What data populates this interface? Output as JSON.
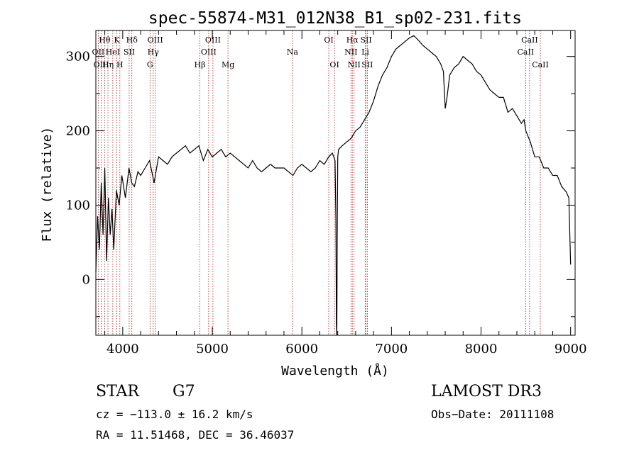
{
  "chart_data": {
    "type": "line",
    "title": "spec-55874-M31_012N38_B1_sp02-231.fits",
    "xlabel": "Wavelength (Å)",
    "ylabel": "Flux (relative)",
    "xlim": [
      3700,
      9050
    ],
    "ylim": [
      -75,
      335
    ],
    "xticks": [
      4000,
      5000,
      6000,
      7000,
      8000,
      9000
    ],
    "yticks": [
      0,
      100,
      200,
      300
    ],
    "colors": {
      "line": "#000000",
      "marker": "#b22222",
      "axes": "#000000"
    },
    "series": [
      {
        "name": "flux",
        "x": [
          3700,
          3720,
          3740,
          3760,
          3780,
          3800,
          3820,
          3840,
          3860,
          3880,
          3900,
          3930,
          3960,
          3990,
          4030,
          4070,
          4100,
          4130,
          4170,
          4200,
          4250,
          4300,
          4350,
          4400,
          4450,
          4500,
          4550,
          4600,
          4650,
          4700,
          4750,
          4800,
          4850,
          4900,
          4950,
          5000,
          5050,
          5100,
          5150,
          5200,
          5250,
          5300,
          5350,
          5400,
          5450,
          5500,
          5550,
          5600,
          5650,
          5700,
          5750,
          5800,
          5850,
          5900,
          5950,
          6000,
          6050,
          6100,
          6150,
          6200,
          6250,
          6300,
          6340,
          6370,
          6380,
          6385,
          6390,
          6395,
          6400,
          6410,
          6450,
          6500,
          6550,
          6600,
          6650,
          6700,
          6750,
          6800,
          6850,
          6900,
          6950,
          7000,
          7050,
          7100,
          7150,
          7200,
          7250,
          7300,
          7350,
          7400,
          7450,
          7500,
          7550,
          7580,
          7600,
          7620,
          7650,
          7700,
          7750,
          7800,
          7850,
          7900,
          7950,
          8000,
          8050,
          8100,
          8150,
          8200,
          8250,
          8300,
          8350,
          8400,
          8450,
          8480,
          8500,
          8550,
          8600,
          8650,
          8700,
          8750,
          8800,
          8850,
          8900,
          8950,
          8980,
          9000
        ],
        "y": [
          10,
          85,
          40,
          130,
          60,
          150,
          25,
          110,
          60,
          95,
          40,
          120,
          100,
          140,
          110,
          150,
          130,
          125,
          145,
          140,
          150,
          160,
          130,
          165,
          160,
          155,
          165,
          170,
          175,
          180,
          170,
          175,
          180,
          160,
          175,
          165,
          170,
          175,
          165,
          170,
          165,
          160,
          155,
          150,
          160,
          150,
          145,
          150,
          155,
          150,
          150,
          150,
          145,
          140,
          150,
          155,
          150,
          145,
          150,
          160,
          155,
          165,
          170,
          160,
          80,
          -60,
          -75,
          60,
          165,
          175,
          180,
          185,
          190,
          200,
          205,
          215,
          225,
          240,
          260,
          275,
          285,
          300,
          310,
          315,
          320,
          325,
          328,
          322,
          315,
          310,
          305,
          300,
          290,
          280,
          230,
          245,
          275,
          285,
          290,
          300,
          295,
          290,
          280,
          275,
          265,
          255,
          250,
          245,
          245,
          225,
          230,
          220,
          210,
          215,
          200,
          185,
          165,
          165,
          150,
          150,
          140,
          140,
          125,
          118,
          110,
          20
        ]
      }
    ],
    "line_markers": [
      {
        "label": "Hθ",
        "x": 3798,
        "row": 1
      },
      {
        "label": "OII",
        "x": 3727,
        "row": 2
      },
      {
        "label": "OIII",
        "x": 3760,
        "row": 3
      },
      {
        "label": "K",
        "x": 3934,
        "row": 1
      },
      {
        "label": "HeI",
        "x": 3889,
        "row": 2
      },
      {
        "label": "Hη",
        "x": 3835,
        "row": 3
      },
      {
        "label": "Hδ",
        "x": 4102,
        "row": 1
      },
      {
        "label": "SII",
        "x": 4072,
        "row": 2
      },
      {
        "label": "H",
        "x": 3968,
        "row": 3
      },
      {
        "label": "OIII",
        "x": 4363,
        "row": 1
      },
      {
        "label": "Hγ",
        "x": 4340,
        "row": 2
      },
      {
        "label": "G",
        "x": 4305,
        "row": 3
      },
      {
        "label": "OIII",
        "x": 5007,
        "row": 1
      },
      {
        "label": "OIII",
        "x": 4959,
        "row": 2
      },
      {
        "label": "Hβ",
        "x": 4861,
        "row": 3
      },
      {
        "label": "Mg",
        "x": 5175,
        "row": 3
      },
      {
        "label": "Na",
        "x": 5894,
        "row": 2
      },
      {
        "label": "OI",
        "x": 6300,
        "row": 1
      },
      {
        "label": "OI",
        "x": 6364,
        "row": 3
      },
      {
        "label": "Hα",
        "x": 6563,
        "row": 1
      },
      {
        "label": "SII",
        "x": 6717,
        "row": 1
      },
      {
        "label": "NII",
        "x": 6548,
        "row": 2
      },
      {
        "label": "Li",
        "x": 6708,
        "row": 2
      },
      {
        "label": "NII",
        "x": 6583,
        "row": 3
      },
      {
        "label": "SII",
        "x": 6731,
        "row": 3
      },
      {
        "label": "CaII",
        "x": 8542,
        "row": 1
      },
      {
        "label": "CaII",
        "x": 8498,
        "row": 2
      },
      {
        "label": "CaII",
        "x": 8662,
        "row": 3
      }
    ]
  },
  "info": {
    "class_label": "STAR",
    "subclass": "G7",
    "survey": "LAMOST DR3",
    "cz_text": "cz = −113.0 ± 16.2 km/s",
    "obs_date_text": "Obs−Date: 20111108",
    "radec_text": "RA =  11.51468, DEC =  36.46037"
  }
}
